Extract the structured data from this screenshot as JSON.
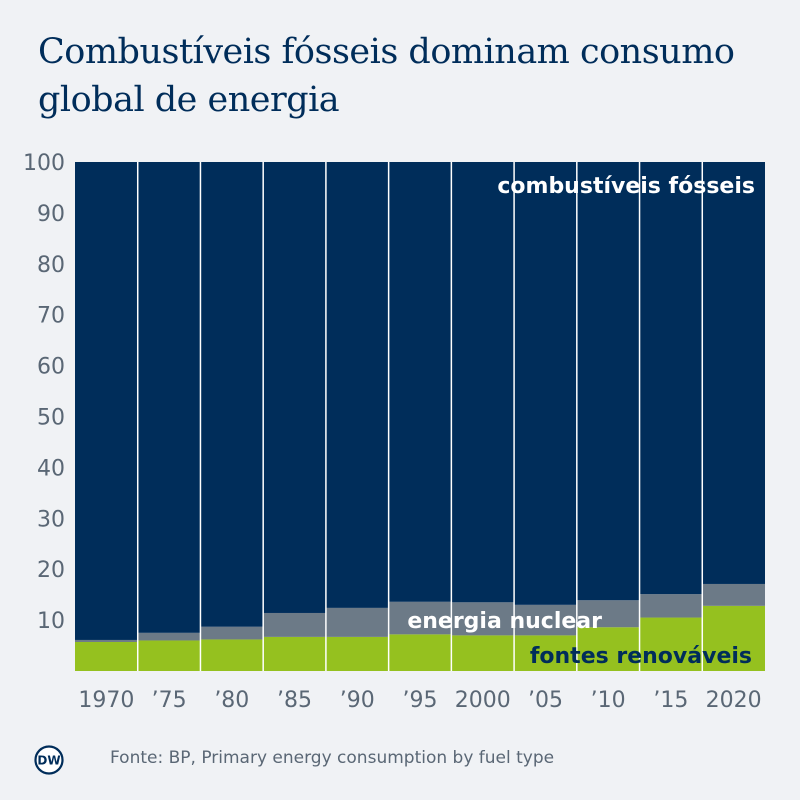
{
  "title": "Combustíveis fósseis dominam consumo global de energia",
  "source": "Fonte: BP, Primary energy consumption by fuel type",
  "logo_text": "DW",
  "colors": {
    "background": "#f0f2f5",
    "fossil": "#002d5a",
    "nuclear": "#6c7a87",
    "renewable": "#95c11f",
    "title": "#002d5a",
    "axis_text": "#5a6775"
  },
  "chart_data": {
    "type": "bar",
    "stacked": true,
    "categories": [
      "1970",
      "’75",
      "’80",
      "’85",
      "’90",
      "’95",
      "2000",
      "’05",
      "’10",
      "’15",
      "2020"
    ],
    "ylim": [
      0,
      100
    ],
    "yticks": [
      10,
      20,
      30,
      40,
      50,
      60,
      70,
      80,
      90,
      100
    ],
    "grid": false,
    "series": [
      {
        "name": "fontes renováveis",
        "color": "#95c11f",
        "values": [
          5.7,
          6.0,
          6.2,
          6.7,
          6.7,
          7.2,
          7.0,
          7.0,
          8.6,
          10.5,
          12.8
        ]
      },
      {
        "name": "energia nuclear",
        "color": "#6c7a87",
        "values": [
          0.4,
          1.5,
          2.5,
          4.7,
          5.7,
          6.4,
          6.5,
          6.0,
          5.3,
          4.6,
          4.3
        ]
      },
      {
        "name": "combustíveis fósseis",
        "color": "#002d5a",
        "values": [
          93.9,
          92.5,
          91.3,
          88.6,
          87.6,
          86.4,
          86.5,
          87.0,
          86.1,
          84.9,
          82.9
        ]
      }
    ],
    "labels": {
      "fossil": "combustíveis fósseis",
      "nuclear": "energia nuclear",
      "renewable": "fontes renováveis"
    }
  }
}
